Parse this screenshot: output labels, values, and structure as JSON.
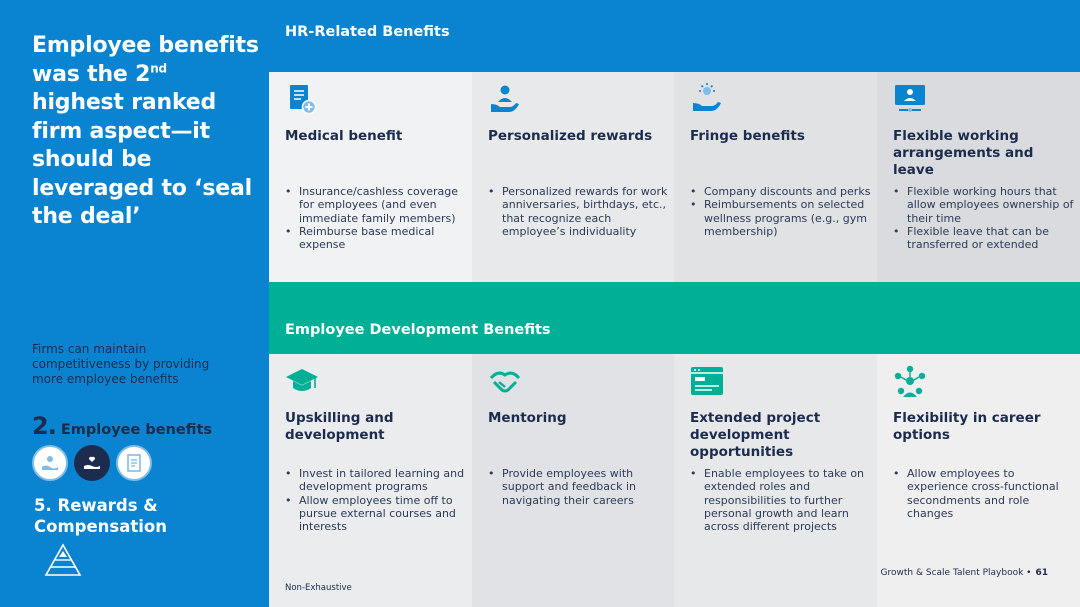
{
  "left": {
    "headline_part1": "Employee benefits was the 2",
    "headline_sup": "nd",
    "headline_part2": " highest ranked firm aspect—it should be leveraged to ‘seal the deal’",
    "subtext": "Firms can maintain competitiveness by providing more employee benefits",
    "section_number": "2.",
    "section_label": " Employee benefits",
    "rewards_label": "5. Rewards & Compensation"
  },
  "hr_band": {
    "title": "HR-Related Benefits"
  },
  "dev_band": {
    "title": "Employee Development Benefits"
  },
  "hr_cards": [
    {
      "icon": "medical-document-icon",
      "title": "Medical benefit",
      "bullets": [
        "Insurance/cashless coverage for employees (and even immediate family members)",
        "Reimburse base medical expense"
      ]
    },
    {
      "icon": "person-hand-icon",
      "title": "Personalized rewards",
      "bullets": [
        "Personalized rewards for work anniversaries, birthdays, etc., that recognize each employee’s individuality"
      ]
    },
    {
      "icon": "sun-hand-icon",
      "title": "Fringe benefits",
      "bullets": [
        "Company discounts and perks",
        "Reimbursements on selected wellness programs (e.g., gym membership)"
      ]
    },
    {
      "icon": "remote-laptop-icon",
      "title": "Flexible working arrangements and leave",
      "bullets": [
        "Flexible working hours that allow employees ownership of their time",
        "Flexible leave that can be transferred or extended"
      ]
    }
  ],
  "dev_cards": [
    {
      "icon": "graduation-cap-icon",
      "title": "Upskilling and development",
      "bullets": [
        "Invest in tailored learning and development programs",
        "Allow employees time off to pursue external courses and interests"
      ]
    },
    {
      "icon": "handshake-icon",
      "title": "Mentoring",
      "bullets": [
        "Provide employees with support and feedback in navigating their careers"
      ]
    },
    {
      "icon": "browser-window-icon",
      "title": "Extended project development opportunities",
      "bullets": [
        "Enable employees to take on extended roles and responsibilities to further personal growth and learn across different projects"
      ]
    },
    {
      "icon": "network-people-icon",
      "title": "Flexibility in career options",
      "bullets": [
        "Allow employees to experience cross-functional secondments and role changes"
      ]
    }
  ],
  "footnote": "Non-Exhaustive",
  "footer": {
    "text": "Growth & Scale Talent Playbook  •",
    "page": "61"
  },
  "colors": {
    "blue": "#0a84d0",
    "green": "#00b096",
    "navy": "#1c2c4e"
  }
}
